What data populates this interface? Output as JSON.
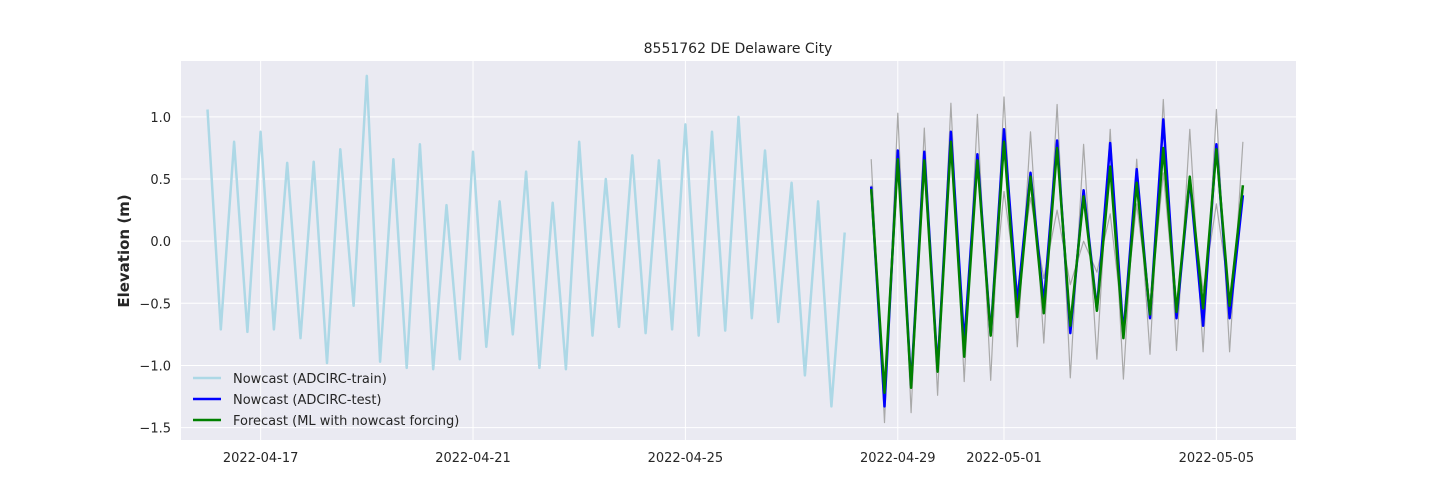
{
  "chart_data": {
    "type": "line",
    "title": "8551762 DE Delaware City",
    "xlabel": "",
    "ylabel": "Elevation (m)",
    "xlim": [
      "2022-04-15 12:00",
      "2022-05-06 12:00"
    ],
    "ylim": [
      -1.6,
      1.45
    ],
    "x_ticks": [
      "2022-04-17",
      "2022-04-21",
      "2022-04-25",
      "2022-04-29",
      "2022-05-01",
      "2022-05-05"
    ],
    "y_ticks": [
      -1.5,
      -1.0,
      -0.5,
      0.0,
      0.5,
      1.0
    ],
    "y_tick_labels": [
      "−1.5",
      "−1.0",
      "−0.5",
      "0.0",
      "0.5",
      "1.0"
    ],
    "grid": true,
    "legend_position": "lower-left",
    "colors": {
      "background": "#eaeaf2",
      "grid": "#ffffff"
    },
    "series": [
      {
        "name": "Nowcast (ADCIRC-train)",
        "color": "#add8e6",
        "width": 2.5,
        "in_legend": true,
        "t_start": "2022-04-16 00:00",
        "step_hours": 6,
        "values": [
          1.06,
          -0.71,
          0.8,
          -0.73,
          0.88,
          -0.71,
          0.63,
          -0.78,
          0.64,
          -0.98,
          0.74,
          -0.52,
          1.33,
          -0.97,
          0.66,
          -1.02,
          0.78,
          -1.03,
          0.29,
          -0.95,
          0.72,
          -0.85,
          0.32,
          -0.75,
          0.56,
          -1.02,
          0.31,
          -1.03,
          0.8,
          -0.76,
          0.5,
          -0.69,
          0.69,
          -0.74,
          0.65,
          -0.71,
          0.94,
          -0.76,
          0.88,
          -0.72,
          1.0,
          -0.62,
          0.73,
          -0.65,
          0.47,
          -1.08,
          0.32,
          -1.33,
          0.07
        ]
      },
      {
        "name": "",
        "color": "#a9a9a9",
        "width": 1.2,
        "in_legend": false,
        "t_start": "2022-04-28 12:00",
        "step_hours": 6,
        "values": [
          0.66,
          -1.46,
          1.03,
          -1.38,
          0.91,
          -1.24,
          1.11,
          -1.13,
          1.02,
          -1.12,
          1.16,
          -0.85,
          0.88,
          -0.82,
          1.1,
          -1.1,
          0.78,
          -0.95,
          0.9,
          -1.11,
          0.66,
          -0.91,
          1.14,
          -0.88,
          0.9,
          -0.89,
          1.06,
          -0.89,
          0.8
        ]
      },
      {
        "name": "",
        "color": "#a9a9a9",
        "width": 1.2,
        "in_legend": false,
        "t_start": "2022-04-28 12:00",
        "step_hours": 6,
        "values": [
          0.45,
          -1.25,
          0.6,
          -1.15,
          0.55,
          -1.0,
          0.72,
          -0.85,
          0.6,
          -0.7,
          0.4,
          -0.4,
          0.35,
          -0.3,
          0.25,
          -0.35,
          0.0,
          -0.25,
          0.22,
          -0.7,
          0.3,
          -0.55,
          0.55,
          -0.6,
          0.45,
          -0.4,
          0.3,
          -0.45,
          0.4
        ]
      },
      {
        "name": "Nowcast (ADCIRC-test)",
        "color": "#0000ff",
        "width": 2.5,
        "in_legend": true,
        "t_start": "2022-04-28 12:00",
        "step_hours": 6,
        "values": [
          0.44,
          -1.33,
          0.73,
          -1.16,
          0.72,
          -1.03,
          0.88,
          -0.82,
          0.7,
          -0.75,
          0.9,
          -0.5,
          0.55,
          -0.5,
          0.81,
          -0.74,
          0.41,
          -0.55,
          0.79,
          -0.75,
          0.58,
          -0.62,
          0.98,
          -0.62,
          0.5,
          -0.68,
          0.78,
          -0.62,
          0.37
        ]
      },
      {
        "name": "Forecast (ML with nowcast forcing)",
        "color": "#008000",
        "width": 2.5,
        "in_legend": true,
        "t_start": "2022-04-28 12:00",
        "step_hours": 6,
        "values": [
          0.42,
          -1.22,
          0.66,
          -1.18,
          0.65,
          -1.05,
          0.8,
          -0.93,
          0.65,
          -0.76,
          0.8,
          -0.61,
          0.52,
          -0.58,
          0.75,
          -0.68,
          0.36,
          -0.56,
          0.6,
          -0.78,
          0.47,
          -0.59,
          0.75,
          -0.57,
          0.52,
          -0.54,
          0.74,
          -0.52,
          0.45
        ]
      }
    ]
  }
}
